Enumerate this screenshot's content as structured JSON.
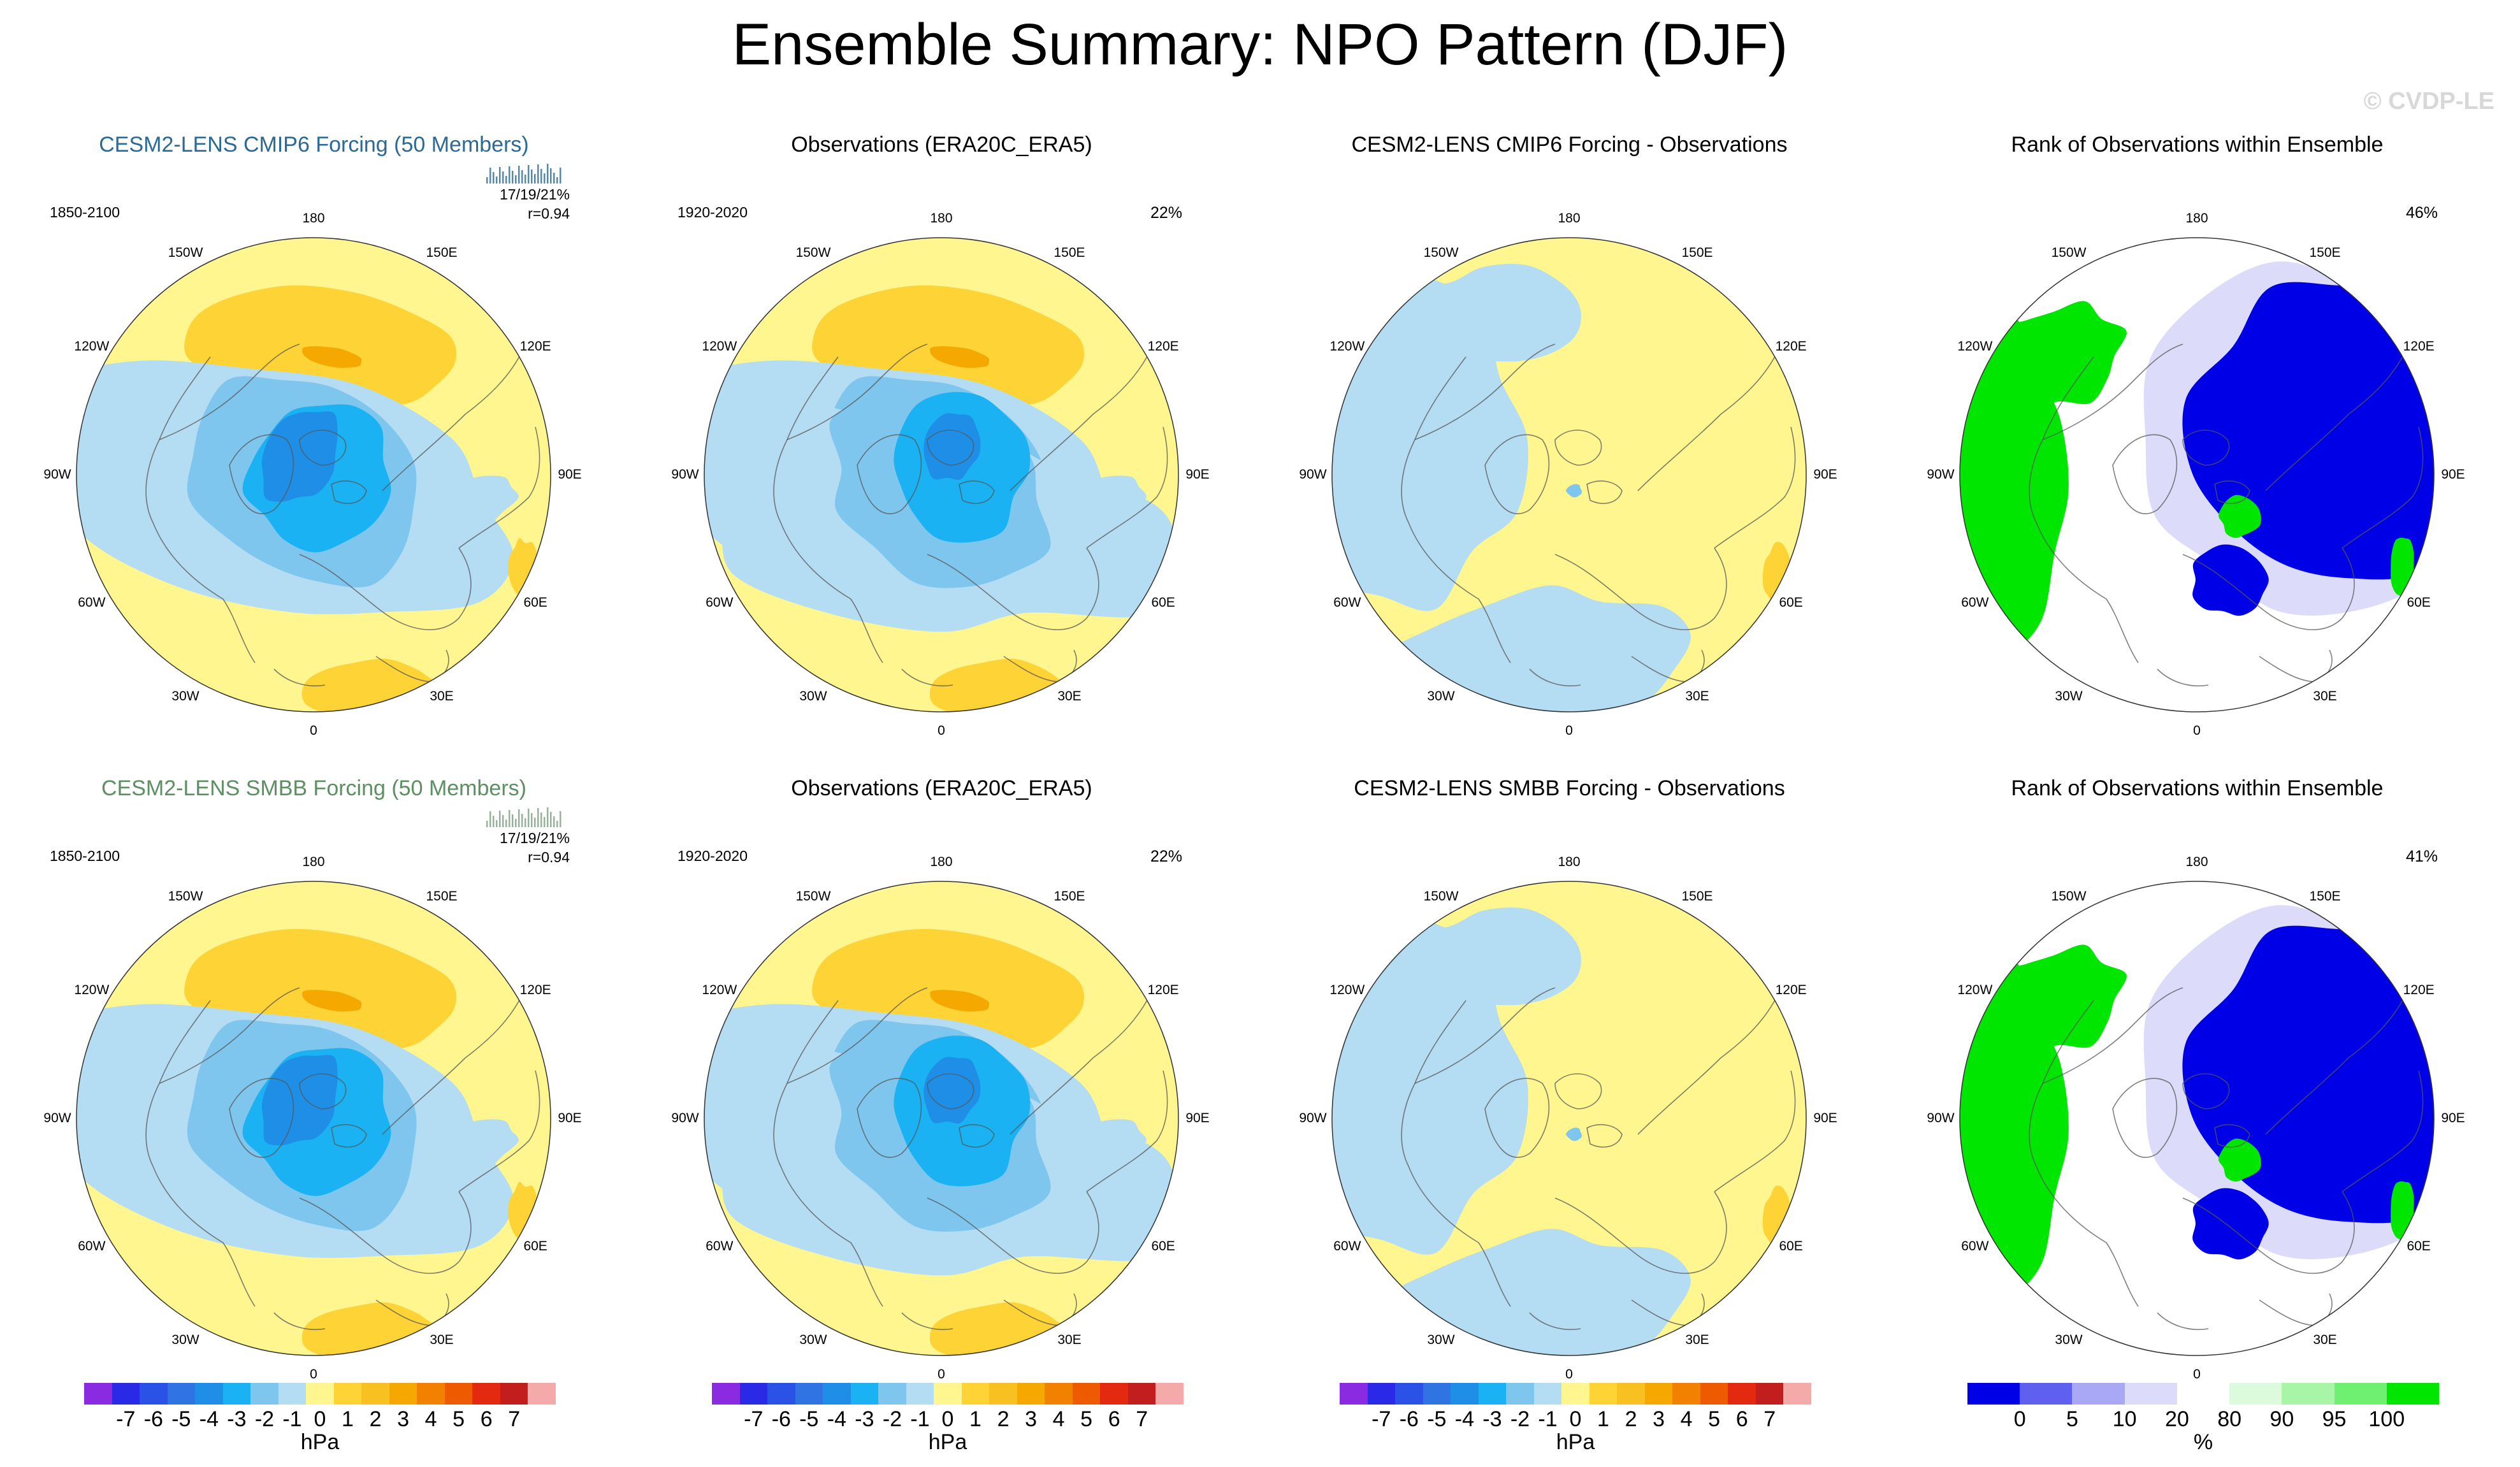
{
  "title": "Ensemble Summary: NPO Pattern (DJF)",
  "watermark": "© CVDP-LE",
  "colors": {
    "land_outline": "#555555",
    "p8": "#8a2be2",
    "n7": "#7c3ce6",
    "n6": "#2a2ae6",
    "n5": "#2a52e6",
    "n4": "#2f74e2",
    "n3": "#1f8ee6",
    "n2": "#1ab2f2",
    "n1": "#7fc6ee",
    "n0": "#b4dcf2",
    "p0": "#fff690",
    "p1": "#fdd335",
    "p2": "#f8c020",
    "p3": "#f5a800",
    "p4": "#f28100",
    "p5": "#ee5a00",
    "p6": "#e32a10",
    "p7": "#c21e1e",
    "p9": "#f5aaaa",
    "r_blue": "#0000e6",
    "r_blue2": "#6060f0",
    "r_blue3": "#a8a8f5",
    "r_blue4": "#dcdcfa",
    "r_white": "#ffffff",
    "r_green4": "#dcfadc",
    "r_green3": "#a8f5a8",
    "r_green2": "#70f070",
    "r_green": "#00e600"
  },
  "rows": [
    {
      "panels": [
        {
          "title": "CESM2-LENS CMIP6 Forcing (50 Members)",
          "style": "cmip6",
          "period": "1850-2100",
          "stats_line1": "17/19/21%",
          "stats_line2": "r=0.94",
          "kind": "model"
        },
        {
          "title": "Observations (ERA20C_ERA5)",
          "style": "plain",
          "period": "1920-2020",
          "pct": "22%",
          "kind": "obs"
        },
        {
          "title": "CESM2-LENS CMIP6 Forcing - Observations",
          "style": "plain",
          "kind": "diff"
        },
        {
          "title": "Rank of Observations within Ensemble",
          "style": "plain",
          "pct": "46%",
          "kind": "rank"
        }
      ]
    },
    {
      "panels": [
        {
          "title": "CESM2-LENS SMBB Forcing (50 Members)",
          "style": "smbb",
          "period": "1850-2100",
          "stats_line1": "17/19/21%",
          "stats_line2": "r=0.94",
          "kind": "model"
        },
        {
          "title": "Observations (ERA20C_ERA5)",
          "style": "plain",
          "period": "1920-2020",
          "pct": "22%",
          "kind": "obs"
        },
        {
          "title": "CESM2-LENS SMBB Forcing - Observations",
          "style": "plain",
          "kind": "diff"
        },
        {
          "title": "Rank of Observations within Ensemble",
          "style": "plain",
          "pct": "41%",
          "kind": "rank"
        }
      ]
    }
  ],
  "longitude_labels": [
    "180",
    "150E",
    "120E",
    "90E",
    "60E",
    "30E",
    "0",
    "30W",
    "60W",
    "90W",
    "120W",
    "150W"
  ],
  "colorbar_hpa": {
    "unit": "hPa",
    "ticks": [
      "-7",
      "-6",
      "-5",
      "-4",
      "-3",
      "-2",
      "-1",
      "0",
      "1",
      "2",
      "3",
      "4",
      "5",
      "6",
      "7"
    ],
    "swatches": [
      "p8",
      "n6",
      "n5",
      "n4",
      "n3",
      "n2",
      "n1",
      "n0",
      "p0",
      "p1",
      "p2",
      "p3",
      "p4",
      "p5",
      "p6",
      "p7",
      "p9"
    ]
  },
  "colorbar_rank": {
    "unit": "%",
    "ticks": [
      "0",
      "5",
      "10",
      "20",
      "80",
      "90",
      "95",
      "100"
    ],
    "swatches": [
      "r_blue",
      "r_blue2",
      "r_blue3",
      "r_blue4",
      "r_white",
      "r_green4",
      "r_green3",
      "r_green2",
      "r_green"
    ]
  }
}
